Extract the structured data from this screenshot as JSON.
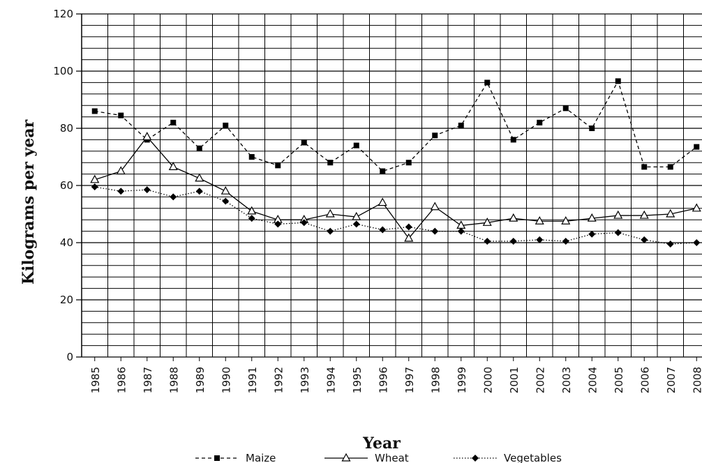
{
  "chart_data": {
    "type": "line",
    "x_label": "Year",
    "y_label": "Kilograms per year",
    "categories": [
      "1985",
      "1986",
      "1987",
      "1988",
      "1989",
      "1990",
      "1991",
      "1992",
      "1993",
      "1994",
      "1995",
      "1996",
      "1997",
      "1998",
      "1999",
      "2000",
      "2001",
      "2002",
      "2003",
      "2004",
      "2005",
      "2006",
      "2007",
      "2008"
    ],
    "ylim": [
      0,
      120
    ],
    "yticks": [
      0,
      20,
      40,
      60,
      80,
      100,
      120
    ],
    "minor_yticks": [
      4,
      8,
      12,
      16,
      24,
      28,
      32,
      36,
      44,
      48,
      52,
      56,
      64,
      68,
      72,
      76,
      84,
      88,
      92,
      96,
      104,
      108,
      112,
      116
    ],
    "grid": true,
    "series": [
      {
        "name": "Maize",
        "color": "#000000",
        "marker": "square",
        "dash": "5,4",
        "values": [
          86,
          84.5,
          76,
          82,
          73,
          81,
          70,
          67,
          75,
          68,
          74,
          65,
          68,
          77.5,
          81,
          96,
          76,
          82,
          87,
          80,
          96.5,
          66.5,
          66.5,
          73.5
        ]
      },
      {
        "name": "Wheat",
        "color": "#000000",
        "marker": "triangle",
        "dash": "none",
        "values": [
          62,
          65,
          77,
          66.5,
          62.5,
          58,
          51,
          48,
          48,
          50,
          49,
          54,
          41.5,
          52.5,
          46,
          47,
          48.5,
          47.5,
          47.5,
          48.5,
          49.5,
          49.5,
          50,
          52
        ]
      },
      {
        "name": "Vegetables",
        "color": "#000000",
        "marker": "diamond",
        "dash": "1.5,2.5",
        "values": [
          59.5,
          58,
          58.5,
          56,
          58,
          54.5,
          48.5,
          46.5,
          47,
          44,
          46.5,
          44.5,
          45.5,
          44,
          44,
          40.5,
          40.5,
          41,
          40.5,
          43,
          43.5,
          41,
          39.5,
          40
        ]
      }
    ]
  }
}
